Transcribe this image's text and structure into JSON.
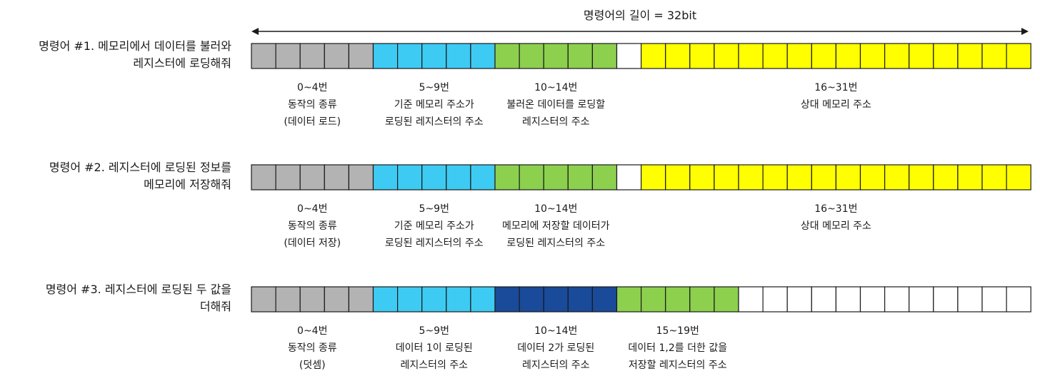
{
  "total_length_label": "명령어의 길이 = 32bit",
  "colors": {
    "gray": "#b3b3b3",
    "cyan": "#3ecbf3",
    "green": "#8cd04e",
    "navy": "#1a4a9a",
    "yellow": "#ffff00",
    "white": "#ffffff",
    "border": "#1a1a1a"
  },
  "instructions": [
    {
      "label_lines": [
        "명령어 #1. 메모리에서 데이터를 불러와",
        "레지스터에 로딩해줘"
      ],
      "bit_groups": [
        {
          "color": "gray",
          "count": 5
        },
        {
          "color": "cyan",
          "count": 5
        },
        {
          "color": "green",
          "count": 5
        },
        {
          "color": "white",
          "count": 1
        },
        {
          "color": "yellow",
          "count": 16
        }
      ],
      "fields": [
        {
          "start_bit": 0,
          "end_bit": 5,
          "lines": [
            "0~4번",
            "동작의 종류",
            "(데이터 로드)"
          ]
        },
        {
          "start_bit": 5,
          "end_bit": 10,
          "lines": [
            "5~9번",
            "기준 메모리 주소가",
            "로딩된 레지스터의 주소"
          ]
        },
        {
          "start_bit": 10,
          "end_bit": 15,
          "lines": [
            "10~14번",
            "불러온 데이터를 로딩할",
            "레지스터의 주소"
          ]
        },
        {
          "start_bit": 16,
          "end_bit": 32,
          "lines": [
            "16~31번",
            "상대 메모리 주소"
          ]
        }
      ]
    },
    {
      "label_lines": [
        "명령어 #2. 레지스터에 로딩된 정보를",
        "메모리에 저장해줘"
      ],
      "bit_groups": [
        {
          "color": "gray",
          "count": 5
        },
        {
          "color": "cyan",
          "count": 5
        },
        {
          "color": "green",
          "count": 5
        },
        {
          "color": "white",
          "count": 1
        },
        {
          "color": "yellow",
          "count": 16
        }
      ],
      "fields": [
        {
          "start_bit": 0,
          "end_bit": 5,
          "lines": [
            "0~4번",
            "동작의 종류",
            "(데이터 저장)"
          ]
        },
        {
          "start_bit": 5,
          "end_bit": 10,
          "lines": [
            "5~9번",
            "기준 메모리 주소가",
            "로딩된 레지스터의 주소"
          ]
        },
        {
          "start_bit": 10,
          "end_bit": 15,
          "lines": [
            "10~14번",
            "메모리에 저장할 데이터가",
            "로딩된 레지스터의 주소"
          ]
        },
        {
          "start_bit": 16,
          "end_bit": 32,
          "lines": [
            "16~31번",
            "상대 메모리 주소"
          ]
        }
      ]
    },
    {
      "label_lines": [
        "명령어 #3. 레지스터에 로딩된 두 값을",
        "더해줘"
      ],
      "bit_groups": [
        {
          "color": "gray",
          "count": 5
        },
        {
          "color": "cyan",
          "count": 5
        },
        {
          "color": "navy",
          "count": 5
        },
        {
          "color": "green",
          "count": 5
        },
        {
          "color": "white",
          "count": 12
        }
      ],
      "fields": [
        {
          "start_bit": 0,
          "end_bit": 5,
          "lines": [
            "0~4번",
            "동작의 종류",
            "(덧셈)"
          ]
        },
        {
          "start_bit": 5,
          "end_bit": 10,
          "lines": [
            "5~9번",
            "데이터 1이 로딩된",
            "레지스터의 주소"
          ]
        },
        {
          "start_bit": 10,
          "end_bit": 15,
          "lines": [
            "10~14번",
            "데이터 2가 로딩된",
            "레지스터의 주소"
          ]
        },
        {
          "start_bit": 15,
          "end_bit": 20,
          "lines": [
            "15~19번",
            "데이터 1,2를 더한 값을",
            "저장할 레지스터의 주소"
          ]
        }
      ]
    }
  ]
}
